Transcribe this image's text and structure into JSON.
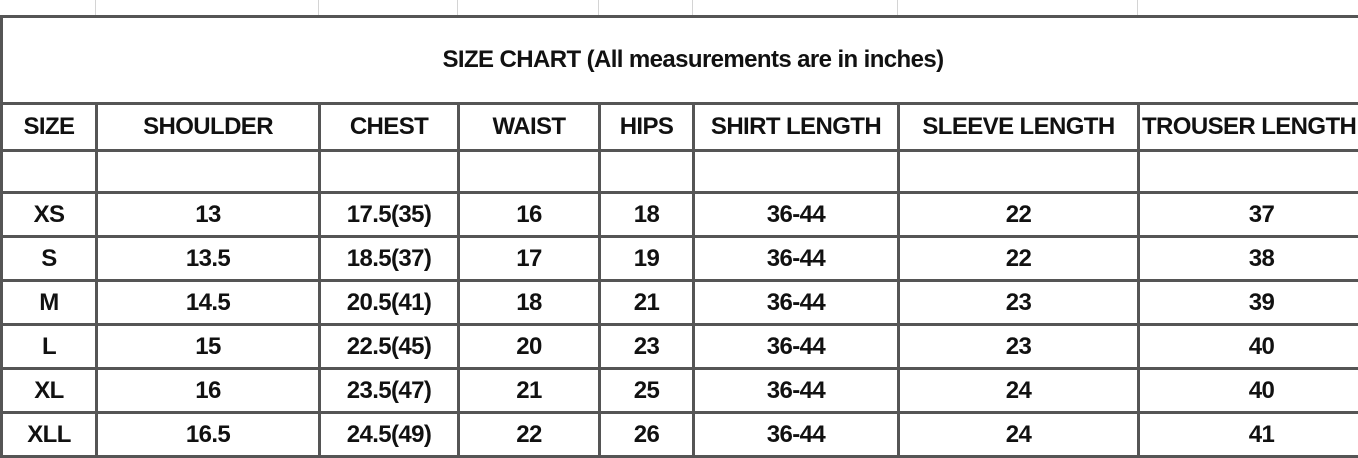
{
  "title": "SIZE CHART (All measurements are in inches)",
  "columns": [
    "SIZE",
    "SHOULDER",
    "CHEST",
    "WAIST",
    "HIPS",
    "SHIRT LENGTH",
    "SLEEVE LENGTH",
    "TROUSER LENGTH"
  ],
  "rows": [
    [
      "XS",
      "13",
      "17.5(35)",
      "16",
      "18",
      "36-44",
      "22",
      "37"
    ],
    [
      "S",
      "13.5",
      "18.5(37)",
      "17",
      "19",
      "36-44",
      "22",
      "38"
    ],
    [
      "M",
      "14.5",
      "20.5(41)",
      "18",
      "21",
      "36-44",
      "23",
      "39"
    ],
    [
      "L",
      "15",
      "22.5(45)",
      "20",
      "23",
      "36-44",
      "23",
      "40"
    ],
    [
      "XL",
      "16",
      "23.5(47)",
      "21",
      "25",
      "36-44",
      "24",
      "40"
    ],
    [
      "XLL",
      "16.5",
      "24.5(49)",
      "22",
      "26",
      "36-44",
      "24",
      "41"
    ]
  ],
  "colors": {
    "border": "#555555",
    "text": "#111111",
    "gridline": "#d4d4d4"
  }
}
